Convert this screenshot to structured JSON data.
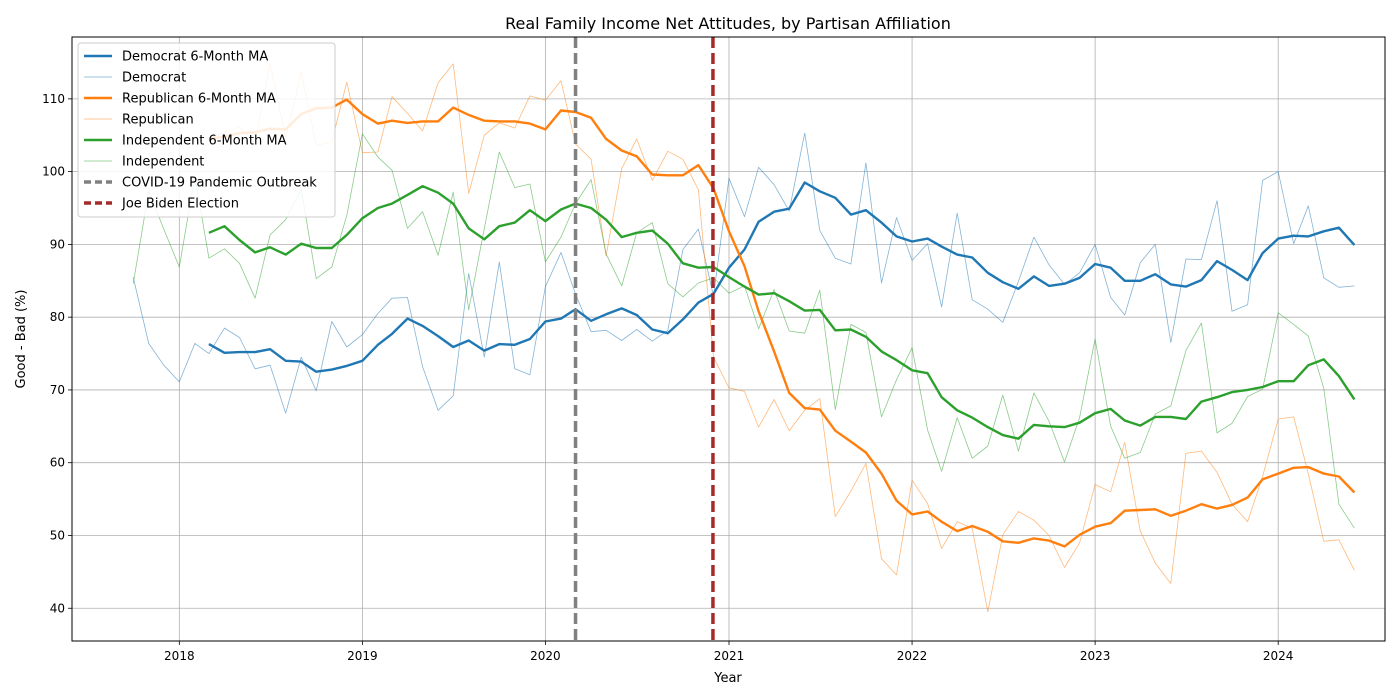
{
  "chart_data": {
    "type": "line",
    "title": "Real Family Income Net Attitudes, by Partisan Affiliation",
    "xlabel": "Year",
    "ylabel": "Good - Bad (%)",
    "xlim": [
      "2017-06-01",
      "2024-08-01"
    ],
    "ylim": [
      35.5,
      118.5
    ],
    "x_ticks": [
      "2018",
      "2019",
      "2020",
      "2021",
      "2022",
      "2023",
      "2024"
    ],
    "y_ticks": [
      40,
      50,
      60,
      70,
      80,
      90,
      100,
      110
    ],
    "grid": true,
    "legend_position": "top-left",
    "x": [
      "2017-10-01",
      "2017-11-01",
      "2017-12-01",
      "2018-01-01",
      "2018-02-01",
      "2018-03-01",
      "2018-04-01",
      "2018-05-01",
      "2018-06-01",
      "2018-07-01",
      "2018-08-01",
      "2018-09-01",
      "2018-10-01",
      "2018-11-01",
      "2018-12-01",
      "2019-01-01",
      "2019-02-01",
      "2019-03-01",
      "2019-04-01",
      "2019-05-01",
      "2019-06-01",
      "2019-07-01",
      "2019-08-01",
      "2019-09-01",
      "2019-10-01",
      "2019-11-01",
      "2019-12-01",
      "2020-01-01",
      "2020-02-01",
      "2020-03-01",
      "2020-04-01",
      "2020-05-01",
      "2020-06-01",
      "2020-07-01",
      "2020-08-01",
      "2020-09-01",
      "2020-10-01",
      "2020-11-01",
      "2020-12-01",
      "2021-01-01",
      "2021-02-01",
      "2021-03-01",
      "2021-04-01",
      "2021-05-01",
      "2021-06-01",
      "2021-07-01",
      "2021-08-01",
      "2021-09-01",
      "2021-10-01",
      "2021-11-01",
      "2021-12-01",
      "2022-01-01",
      "2022-02-01",
      "2022-03-01",
      "2022-04-01",
      "2022-05-01",
      "2022-06-01",
      "2022-07-01",
      "2022-08-01",
      "2022-09-01",
      "2022-10-01",
      "2022-11-01",
      "2022-12-01",
      "2023-01-01",
      "2023-02-01",
      "2023-03-01",
      "2023-04-01",
      "2023-05-01",
      "2023-06-01",
      "2023-07-01",
      "2023-08-01",
      "2023-09-01",
      "2023-10-01",
      "2023-11-01",
      "2023-12-01",
      "2024-01-01",
      "2024-02-01",
      "2024-03-01",
      "2024-04-01",
      "2024-05-01",
      "2024-06-01"
    ],
    "series": [
      {
        "name": "Democrat 6-Month MA",
        "color": "#1f77b4",
        "style": "thick",
        "values": [
          null,
          null,
          null,
          null,
          null,
          76.3,
          75.1,
          75.2,
          75.2,
          75.6,
          74.0,
          73.9,
          72.5,
          72.8,
          73.3,
          74.0,
          76.2,
          77.7,
          79.8,
          78.8,
          77.4,
          75.9,
          76.8,
          75.4,
          76.3,
          76.2,
          77.0,
          79.4,
          79.8,
          81.1,
          79.5,
          80.4,
          81.2,
          80.3,
          78.3,
          77.8,
          79.7,
          82.0,
          83.2,
          86.8,
          89.3,
          93.1,
          94.5,
          94.9,
          98.5,
          97.3,
          96.4,
          94.1,
          94.7,
          93.0,
          91.1,
          90.4,
          90.8,
          89.7,
          88.6,
          88.2,
          86.1,
          84.8,
          83.9,
          85.6,
          84.3,
          84.6,
          85.4,
          87.3,
          86.8,
          85.0,
          85.0,
          85.9,
          84.5,
          84.2,
          85.1,
          87.7,
          86.5,
          85.1,
          88.8,
          90.8,
          91.2,
          91.1,
          91.8,
          92.3,
          89.9
        ]
      },
      {
        "name": "Democrat",
        "color": "#1f77b4",
        "style": "thin",
        "values": [
          85.5,
          76.4,
          73.4,
          71.1,
          76.4,
          75.0,
          78.5,
          77.2,
          72.9,
          73.4,
          66.8,
          74.5,
          69.9,
          79.4,
          75.9,
          77.6,
          80.5,
          82.6,
          82.7,
          73.2,
          67.2,
          69.2,
          86.0,
          74.5,
          87.6,
          72.9,
          72.1,
          84.2,
          88.9,
          83.2,
          78.0,
          78.2,
          76.8,
          78.3,
          76.7,
          78.2,
          89.3,
          92.1,
          82.9,
          99.1,
          93.8,
          100.6,
          98.2,
          94.6,
          105.3,
          91.9,
          88.1,
          87.3,
          101.2,
          84.7,
          93.7,
          87.8,
          90.1,
          81.4,
          94.3,
          82.4,
          81.1,
          79.3,
          84.9,
          91.0,
          87.2,
          84.5,
          86.1,
          90.0,
          82.7,
          80.3,
          87.5,
          90.0,
          76.5,
          88.0,
          87.9,
          96.0,
          80.8,
          81.7,
          98.8,
          100.0,
          90.1,
          95.3,
          85.4,
          84.1,
          84.3
        ]
      },
      {
        "name": "Republican 6-Month MA",
        "color": "#ff7f0e",
        "style": "thick",
        "values": [
          null,
          null,
          null,
          null,
          null,
          104.5,
          104.8,
          105.3,
          105.4,
          105.9,
          105.8,
          107.9,
          108.7,
          108.8,
          109.9,
          107.9,
          106.6,
          107.0,
          106.7,
          106.9,
          106.9,
          108.8,
          107.8,
          107.0,
          106.9,
          106.9,
          106.6,
          105.8,
          108.4,
          108.2,
          107.4,
          104.5,
          102.9,
          102.1,
          99.6,
          99.5,
          99.5,
          100.9,
          97.7,
          91.8,
          87.0,
          80.8,
          75.3,
          69.6,
          67.5,
          67.3,
          64.4,
          62.9,
          61.4,
          58.5,
          54.8,
          52.9,
          53.3,
          51.9,
          50.6,
          51.3,
          50.5,
          49.2,
          49.0,
          49.6,
          49.3,
          48.5,
          50.1,
          51.2,
          51.7,
          53.4,
          53.5,
          53.6,
          52.7,
          53.4,
          54.3,
          53.7,
          54.2,
          55.2,
          57.7,
          58.5,
          59.3,
          59.4,
          58.5,
          58.1,
          55.9
        ]
      },
      {
        "name": "Republican",
        "color": "#ff7f0e",
        "style": "thin",
        "values": [
          null,
          null,
          null,
          null,
          null,
          104.5,
          105.4,
          106.2,
          104.0,
          114.9,
          104.6,
          113.6,
          103.6,
          104.1,
          112.3,
          102.6,
          102.7,
          110.3,
          108.0,
          105.6,
          112.2,
          114.8,
          97.0,
          105.0,
          106.7,
          106.0,
          110.4,
          109.8,
          112.5,
          103.8,
          101.7,
          88.4,
          100.4,
          104.5,
          98.8,
          102.8,
          101.7,
          97.5,
          74.5,
          70.3,
          69.8,
          64.9,
          68.7,
          64.4,
          67.2,
          68.8,
          52.6,
          56.1,
          59.9,
          46.8,
          44.6,
          57.6,
          54.4,
          48.2,
          51.9,
          51.0,
          39.5,
          50.1,
          53.3,
          52.1,
          50.0,
          45.6,
          49.0,
          57.0,
          56.0,
          62.8,
          50.6,
          46.2,
          43.4,
          61.3,
          61.6,
          58.7,
          54.3,
          51.9,
          58.1,
          66.0,
          66.3,
          58.5,
          49.2,
          49.4,
          45.2
        ]
      },
      {
        "name": "Independent 6-Month MA",
        "color": "#2ca02c",
        "style": "thick",
        "values": [
          null,
          null,
          null,
          null,
          null,
          91.6,
          92.5,
          90.6,
          88.9,
          89.6,
          88.6,
          90.1,
          89.5,
          89.5,
          91.3,
          93.6,
          95.0,
          95.6,
          96.8,
          98.0,
          97.1,
          95.6,
          92.2,
          90.7,
          92.5,
          93.0,
          94.7,
          93.2,
          94.8,
          95.6,
          95.0,
          93.4,
          91.0,
          91.6,
          91.9,
          90.1,
          87.4,
          86.8,
          86.9,
          85.5,
          84.2,
          83.1,
          83.3,
          82.2,
          80.9,
          81.0,
          78.2,
          78.3,
          77.3,
          75.3,
          74.1,
          72.7,
          72.3,
          69.0,
          67.2,
          66.2,
          64.9,
          63.8,
          63.3,
          65.2,
          65.0,
          64.9,
          65.5,
          66.8,
          67.4,
          65.8,
          65.1,
          66.3,
          66.3,
          66.0,
          68.4,
          69.0,
          69.7,
          70.0,
          70.4,
          71.2,
          71.2,
          73.4,
          74.2,
          71.9,
          68.7
        ]
      },
      {
        "name": "Independent",
        "color": "#2ca02c",
        "style": "thin",
        "values": [
          84.6,
          97.3,
          92.1,
          86.9,
          99.4,
          88.1,
          89.4,
          87.4,
          82.6,
          91.3,
          93.4,
          97.6,
          85.3,
          86.9,
          94.0,
          105.2,
          102.0,
          100.2,
          92.2,
          94.5,
          88.5,
          97.2,
          81.0,
          92.2,
          102.7,
          97.8,
          98.3,
          87.6,
          91.0,
          95.6,
          98.9,
          88.7,
          84.3,
          91.6,
          93.0,
          84.6,
          82.8,
          84.7,
          85.4,
          83.3,
          84.3,
          78.4,
          83.8,
          78.1,
          77.8,
          83.7,
          67.3,
          79.0,
          77.9,
          66.3,
          71.4,
          75.8,
          64.5,
          58.8,
          66.2,
          60.6,
          62.3,
          69.3,
          61.6,
          69.6,
          65.7,
          60.1,
          66.2,
          77.0,
          65.0,
          60.6,
          61.4,
          66.7,
          67.8,
          75.4,
          79.2,
          64.1,
          65.4,
          69.1,
          70.1,
          80.6,
          79.0,
          77.4,
          70.2,
          54.3,
          51.0
        ]
      }
    ],
    "vlines": [
      {
        "name": "COVID-19 Pandemic Outbreak",
        "x": "2020-03-01",
        "color": "#808080"
      },
      {
        "name": "Joe Biden Election",
        "x": "2020-11-30",
        "color": "#a52a2a"
      }
    ],
    "legend_order": [
      "Democrat 6-Month MA",
      "Democrat",
      "Republican 6-Month MA",
      "Republican",
      "Independent 6-Month MA",
      "Independent",
      "COVID-19 Pandemic Outbreak",
      "Joe Biden Election"
    ]
  }
}
